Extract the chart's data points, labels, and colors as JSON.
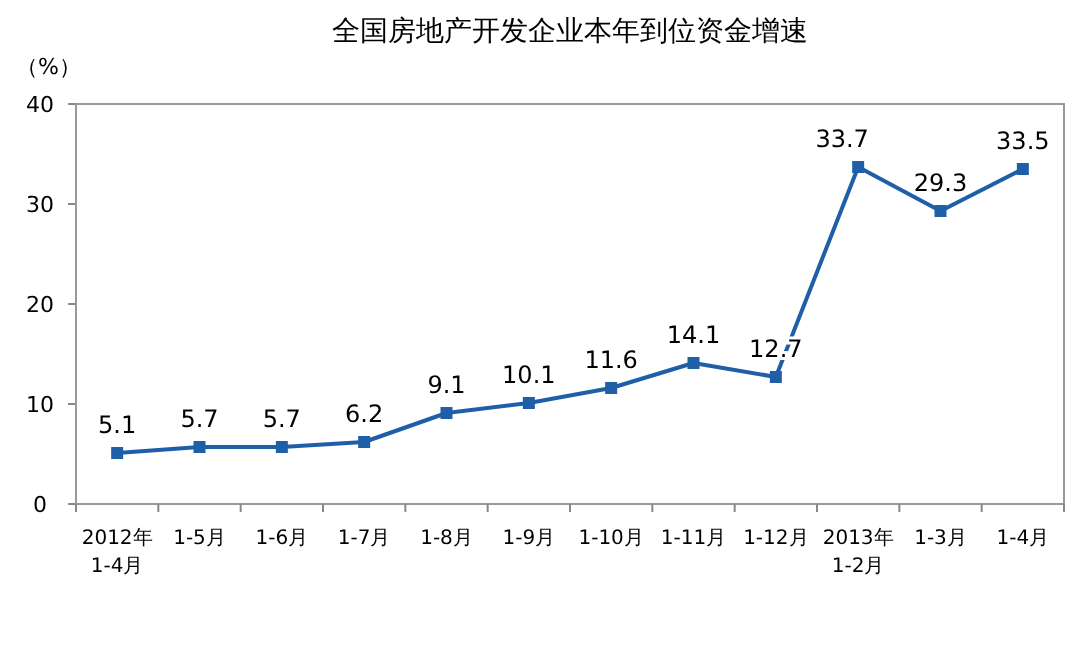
{
  "chart_data": {
    "type": "line",
    "title": "全国房地产开发企业本年到位资金增速",
    "ylabel": "（%）",
    "categories": [
      "2012年\n1-4月",
      "1-5月",
      "1-6月",
      "1-7月",
      "1-8月",
      "1-9月",
      "1-10月",
      "1-11月",
      "1-12月",
      "2013年\n1-2月",
      "1-3月",
      "1-4月"
    ],
    "series": [
      {
        "color": "#1f5fa8",
        "values": [
          5.1,
          5.7,
          5.7,
          6.2,
          9.1,
          10.1,
          11.6,
          14.1,
          12.7,
          33.7,
          29.3,
          33.5
        ]
      }
    ],
    "ylim": [
      0,
      40
    ],
    "yticks": [
      0,
      10,
      20,
      30,
      40
    ],
    "data_labels": true,
    "marker": "square",
    "line_style": "solid",
    "grid": false
  }
}
